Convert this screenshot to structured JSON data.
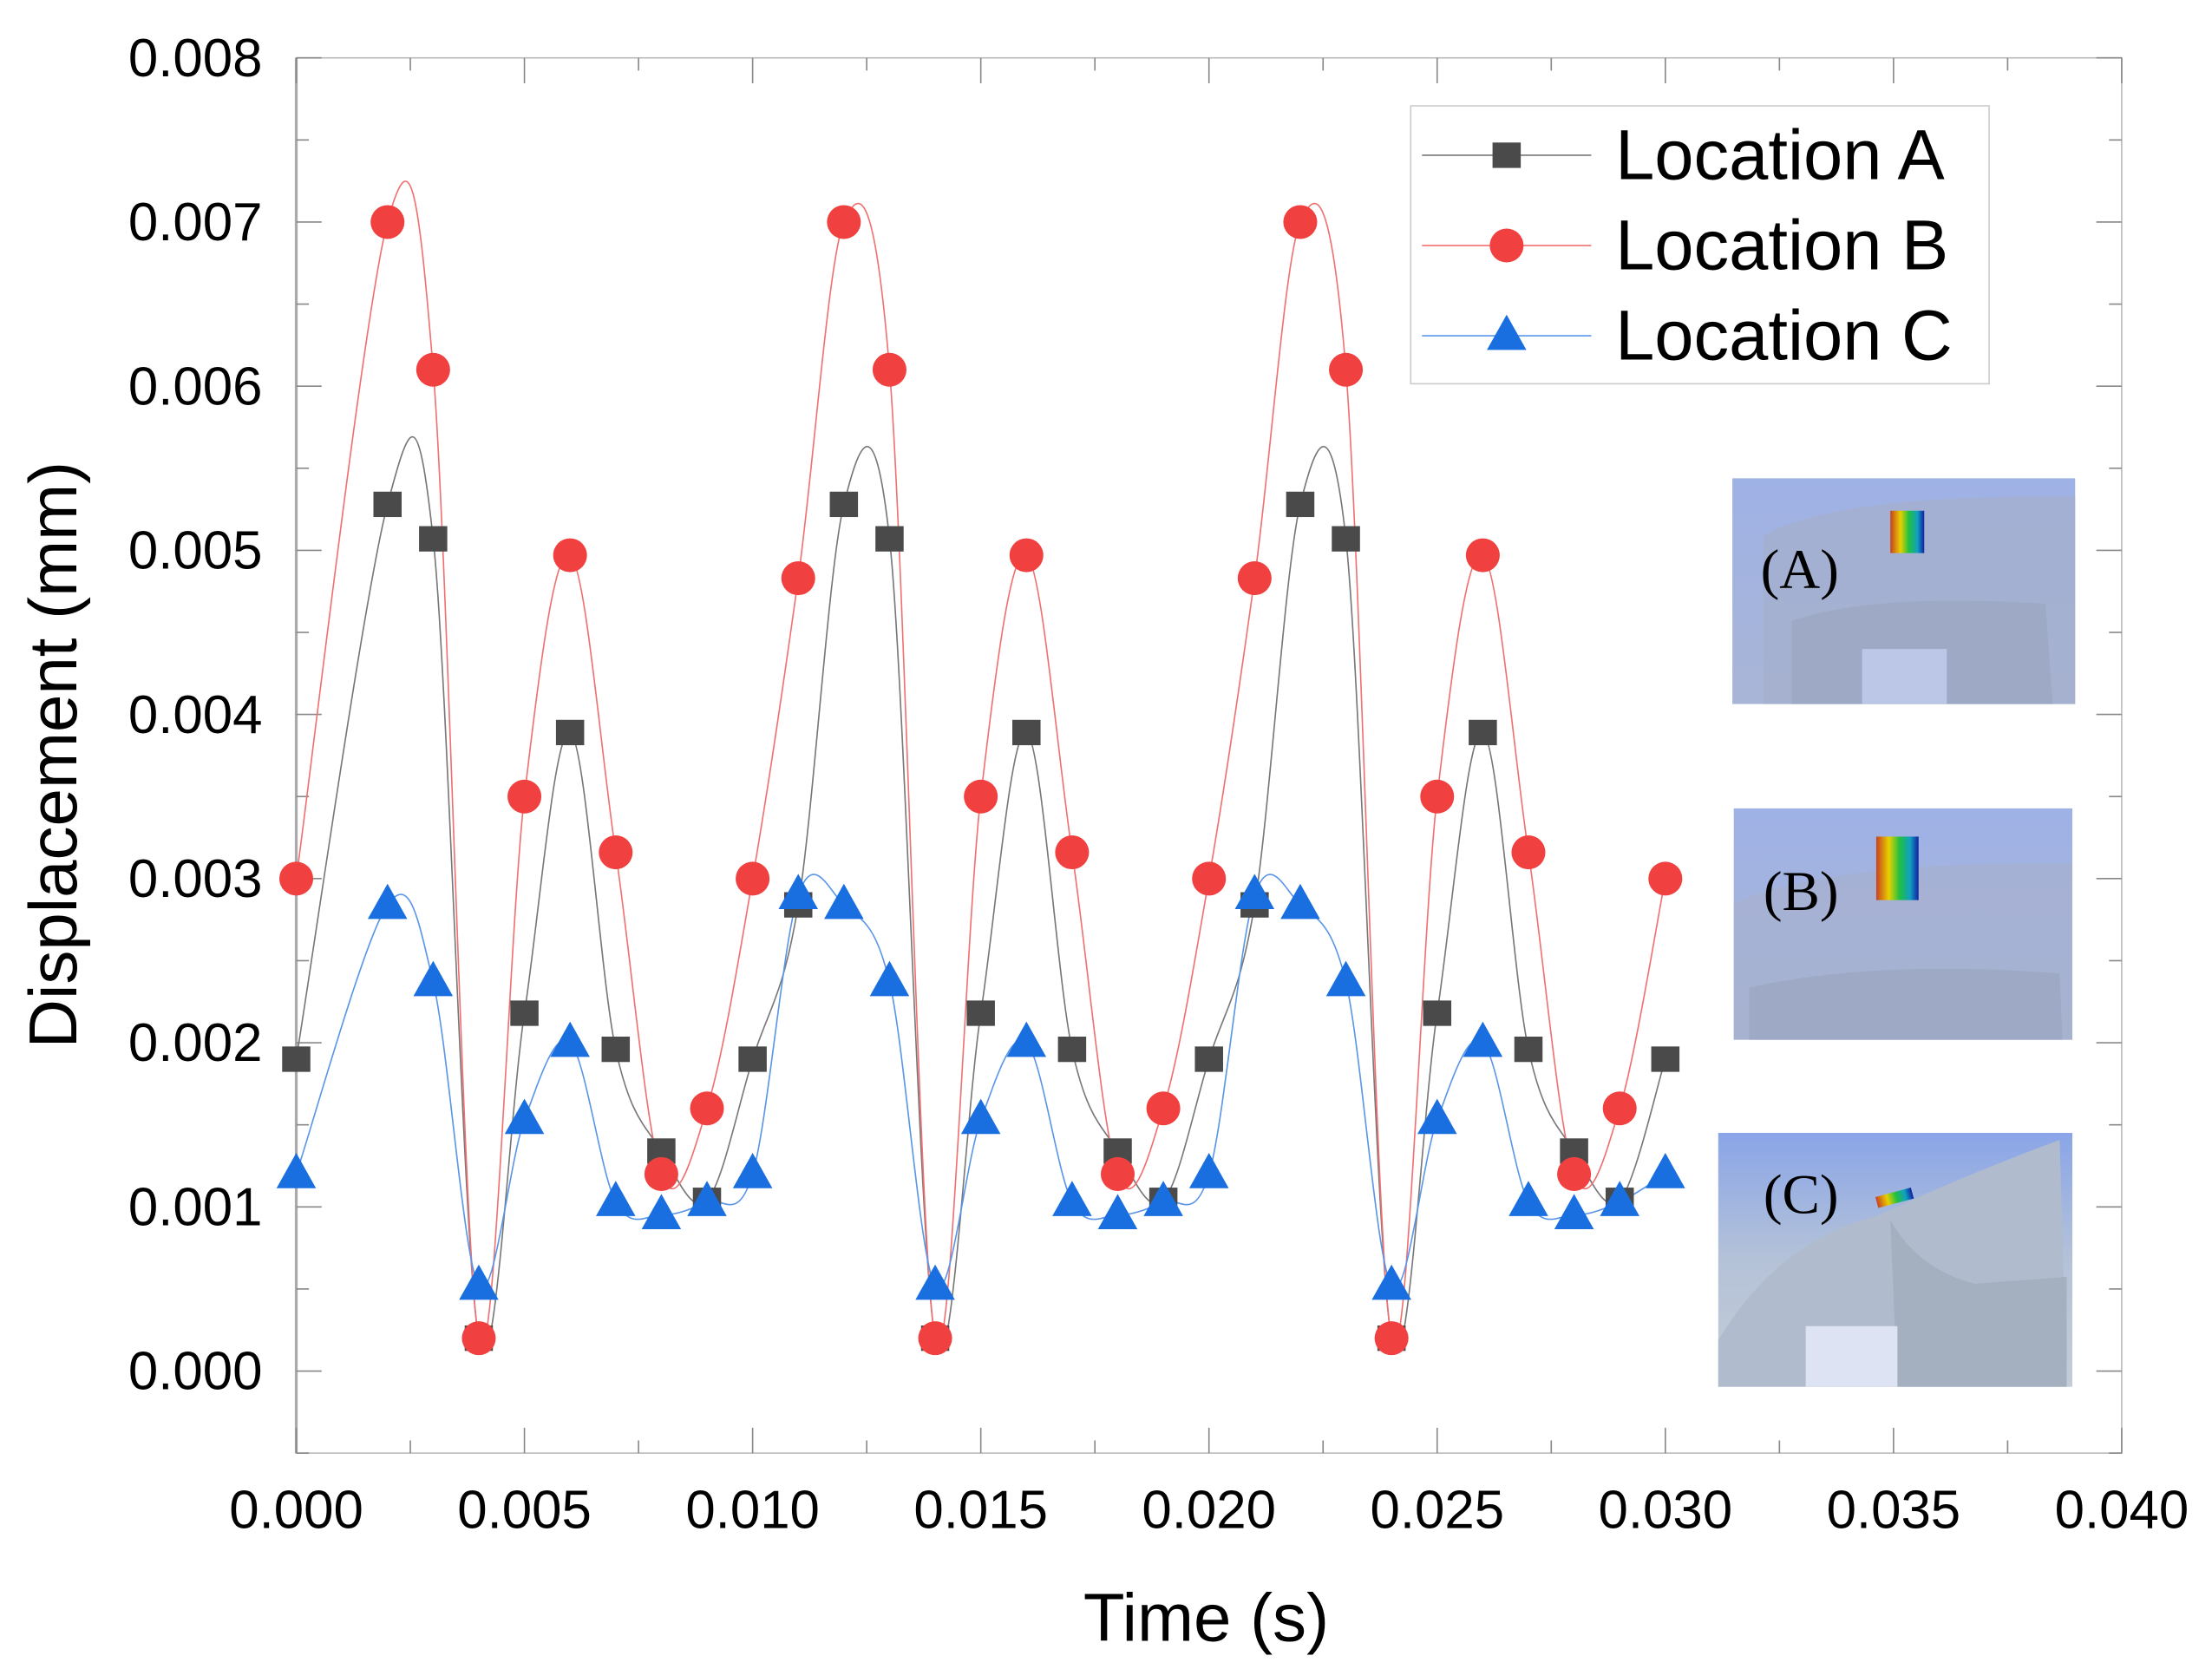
{
  "chart_data": {
    "type": "line",
    "xlabel": "Time (s)",
    "ylabel": "Displacement (mm)",
    "xlim": [
      0,
      0.04
    ],
    "ylim": [
      -0.0005,
      0.008
    ],
    "xticks": [
      "0.000",
      "0.005",
      "0.010",
      "0.015",
      "0.020",
      "0.025",
      "0.030",
      "0.035",
      "0.040"
    ],
    "yticks": [
      "0.000",
      "0.001",
      "0.002",
      "0.003",
      "0.004",
      "0.005",
      "0.006",
      "0.007",
      "0.008"
    ],
    "grid": false,
    "legend_placement": "top-right",
    "x": [
      0,
      0.002,
      0.003,
      0.004,
      0.005,
      0.006,
      0.007,
      0.008,
      0.009,
      0.01,
      0.011,
      0.012,
      0.013,
      0.014,
      0.015,
      0.016,
      0.017,
      0.018,
      0.019,
      0.02,
      0.021,
      0.022,
      0.023,
      0.024,
      0.025,
      0.026,
      0.027,
      0.028,
      0.029,
      0.03
    ],
    "series": [
      {
        "name": "Location A",
        "color": "#4a4a4a",
        "line_color": "#777777",
        "marker": "square",
        "values": [
          0.0019,
          0.00528,
          0.00507,
          0.0002,
          0.00218,
          0.00389,
          0.00196,
          0.00134,
          0.00104,
          0.0019,
          0.00284,
          0.00528,
          0.00507,
          0.0002,
          0.00218,
          0.00389,
          0.00196,
          0.00134,
          0.00104,
          0.0019,
          0.00284,
          0.00528,
          0.00507,
          0.0002,
          0.00218,
          0.00389,
          0.00196,
          0.00134,
          0.00104,
          0.0019
        ]
      },
      {
        "name": "Location B",
        "color": "#f04040",
        "line_color": "#f07070",
        "marker": "circle",
        "values": [
          0.003,
          0.007,
          0.0061,
          0.0002,
          0.0035,
          0.00497,
          0.00316,
          0.0012,
          0.0016,
          0.003,
          0.00483,
          0.007,
          0.0061,
          0.0002,
          0.0035,
          0.00497,
          0.00316,
          0.0012,
          0.0016,
          0.003,
          0.00483,
          0.007,
          0.0061,
          0.0002,
          0.0035,
          0.00497,
          0.00316,
          0.0012,
          0.0016,
          0.003
        ]
      },
      {
        "name": "Location C",
        "color": "#1a6fe0",
        "line_color": "#5a95e8",
        "marker": "triangle",
        "values": [
          0.0012,
          0.00284,
          0.00237,
          0.00052,
          0.00153,
          0.002,
          0.00103,
          0.00095,
          0.00103,
          0.0012,
          0.0029,
          0.00284,
          0.00237,
          0.00052,
          0.00153,
          0.002,
          0.00103,
          0.00095,
          0.00103,
          0.0012,
          0.0029,
          0.00284,
          0.00237,
          0.00052,
          0.00153,
          0.002,
          0.00103,
          0.00095,
          0.00103,
          0.0012
        ]
      }
    ],
    "insets": [
      {
        "label": "(A)"
      },
      {
        "label": "(B)"
      },
      {
        "label": "(C)"
      }
    ]
  }
}
